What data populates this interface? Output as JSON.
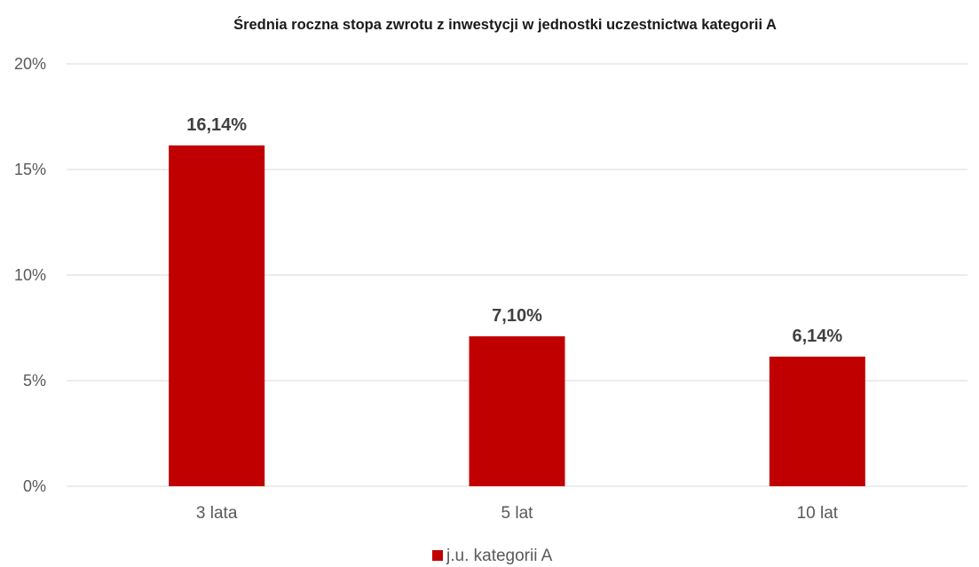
{
  "chart_data": {
    "type": "bar",
    "title": "Średnia roczna stopa zwrotu z inwestycji w jednostki uczestnictwa kategorii A",
    "categories": [
      "3 lata",
      "5 lat",
      "10 lat"
    ],
    "series": [
      {
        "name": "j.u. kategorii A",
        "values": [
          16.14,
          7.1,
          6.14
        ],
        "data_labels": [
          "16,14%",
          "7,10%",
          "6,14%"
        ],
        "color": "#c00000"
      }
    ],
    "y_ticks": [
      {
        "value": 0,
        "label": "0%"
      },
      {
        "value": 5,
        "label": "5%"
      },
      {
        "value": 10,
        "label": "10%"
      },
      {
        "value": 15,
        "label": "15%"
      },
      {
        "value": 20,
        "label": "20%"
      }
    ],
    "ylim": [
      0,
      20
    ],
    "grid": true,
    "legend_position": "bottom"
  }
}
